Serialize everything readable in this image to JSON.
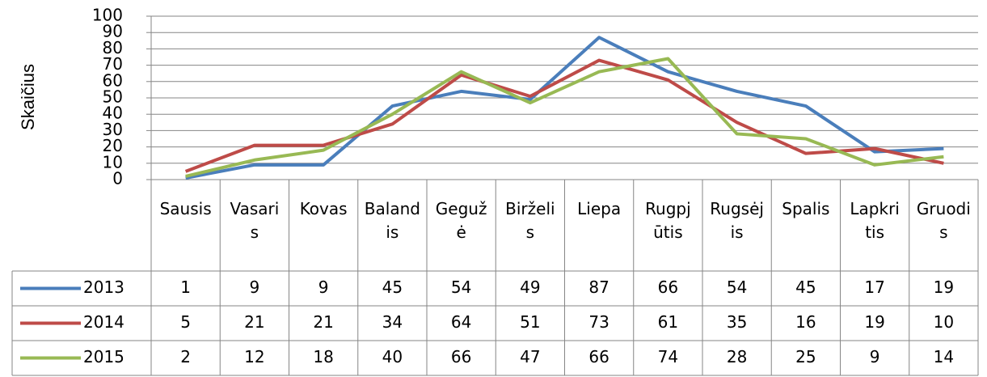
{
  "chart_data": {
    "type": "line",
    "y_label": "Skaičius",
    "categories": [
      "Sausis",
      "Vasaris",
      "Kovas",
      "Balandis",
      "Gegužė",
      "Birželis",
      "Liepa",
      "Rugpjūtis",
      "Rugsėjis",
      "Spalis",
      "Lapkritis",
      "Gruodis"
    ],
    "series": [
      {
        "name": "2013",
        "color": "#4a7ebb",
        "values": [
          1,
          9,
          9,
          45,
          54,
          49,
          87,
          66,
          54,
          45,
          17,
          19
        ]
      },
      {
        "name": "2014",
        "color": "#be4b48",
        "values": [
          5,
          21,
          21,
          34,
          64,
          51,
          73,
          61,
          35,
          16,
          19,
          10
        ]
      },
      {
        "name": "2015",
        "color": "#98b954",
        "values": [
          2,
          12,
          18,
          40,
          66,
          47,
          66,
          74,
          28,
          25,
          9,
          14
        ]
      }
    ],
    "ylim": [
      0,
      100
    ],
    "yticks": [
      0,
      10,
      20,
      30,
      40,
      50,
      60,
      70,
      80,
      90,
      100
    ],
    "grid": true
  }
}
